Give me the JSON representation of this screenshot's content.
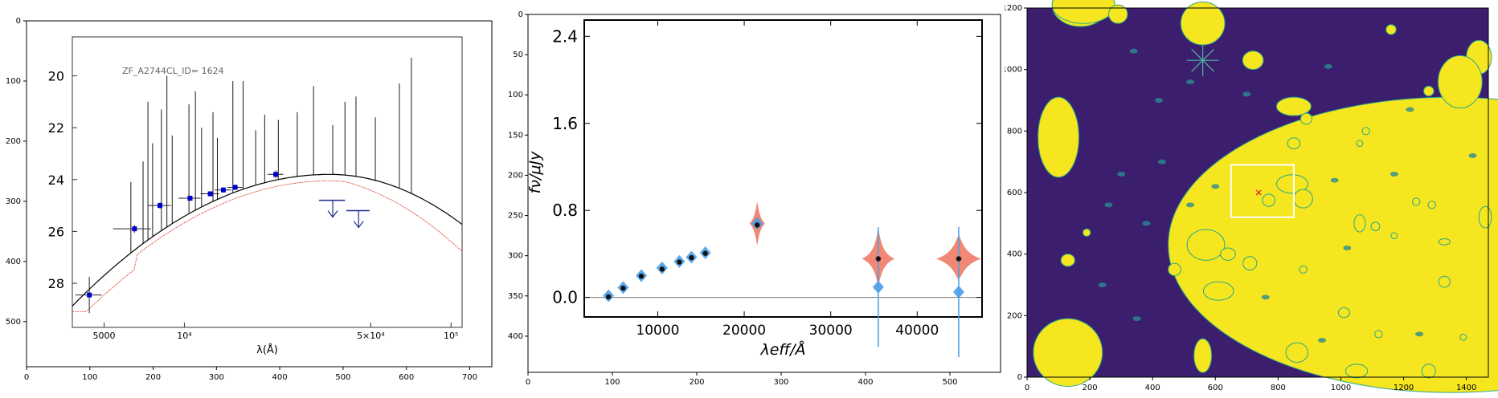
{
  "chart_data": [
    {
      "type": "scatter",
      "title": "",
      "xlabel": "",
      "ylabel": "",
      "xlim": [
        0,
        735
      ],
      "ylim": [
        575,
        0
      ],
      "x_ticks": [
        0,
        100,
        200,
        300,
        400,
        500,
        600,
        700
      ],
      "y_ticks": [
        0,
        100,
        200,
        300,
        400,
        500
      ],
      "embedded_image": {
        "label": "ZF_A2744CL_ID= 1624",
        "xlabel": "λ(Å)",
        "y_tick_labels": [
          "20",
          "22",
          "24",
          "26",
          "28"
        ],
        "y_tick_values": [
          20,
          22,
          24,
          26,
          28
        ],
        "x_tick_labels": [
          "5000",
          "10⁴",
          "5×10⁴",
          "10⁵"
        ],
        "x_tick_values": [
          5000,
          10000,
          50000,
          100000
        ],
        "ylim": [
          18.5,
          29.7
        ],
        "xlim": [
          3800,
          110000
        ],
        "photometry": [
          {
            "x": 4400,
            "y": 28.45,
            "xerr": [
              3900,
              4900
            ],
            "yerr": 0.7
          },
          {
            "x": 6500,
            "y": 25.9,
            "xerr": [
              5400,
              7500
            ],
            "yerr": 0.15
          },
          {
            "x": 8100,
            "y": 25.0,
            "xerr": [
              7300,
              8900
            ],
            "yerr": 0.12
          },
          {
            "x": 10500,
            "y": 24.72,
            "xerr": [
              9500,
              11500
            ],
            "yerr": 0.1
          },
          {
            "x": 12500,
            "y": 24.55,
            "xerr": [
              11500,
              13500
            ],
            "yerr": 0.1
          },
          {
            "x": 14000,
            "y": 24.4,
            "xerr": [
              13000,
              15000
            ],
            "yerr": 0.1
          },
          {
            "x": 15500,
            "y": 24.3,
            "xerr": [
              14500,
              16500
            ],
            "yerr": 0.1
          },
          {
            "x": 22000,
            "y": 23.8,
            "xerr": [
              20500,
              23500
            ],
            "yerr": 0.15
          }
        ],
        "upper_limits": [
          {
            "x": 36000,
            "y": 24.8,
            "xerr": [
              32000,
              40000
            ]
          },
          {
            "x": 45000,
            "y": 25.2,
            "xerr": [
              40500,
              49500
            ]
          }
        ],
        "colors": {
          "points": "#0000cc",
          "model_black": "#000000",
          "model_red": "#e03020"
        }
      }
    },
    {
      "type": "scatter",
      "title": "",
      "xlabel": "λeff/Å",
      "ylabel": "fν/μJy",
      "xlim": [
        1500,
        47500
      ],
      "ylim": [
        -0.18,
        2.55
      ],
      "x_ticks": [
        10000,
        20000,
        30000,
        40000
      ],
      "y_ticks": [
        0.0,
        0.8,
        1.6,
        2.4
      ],
      "x_tick_labels": [
        "10000",
        "20000",
        "30000",
        "40000"
      ],
      "y_tick_labels": [
        "0.0",
        "0.8",
        "1.6",
        "2.4"
      ],
      "outer_pixel_ticks_x": [
        "0",
        "100",
        "200",
        "300",
        "400",
        "500"
      ],
      "outer_pixel_ticks_y": [
        "0",
        "50",
        "100",
        "150",
        "200",
        "250",
        "300",
        "350",
        "400"
      ],
      "outer_xlim": [
        0,
        560
      ],
      "outer_ylim": [
        445,
        0
      ],
      "series": [
        {
          "marker": "diamond",
          "color": "#4a9de8",
          "points": [
            {
              "x": 4300,
              "y": 0.015
            },
            {
              "x": 6000,
              "y": 0.09
            },
            {
              "x": 8100,
              "y": 0.2
            },
            {
              "x": 10500,
              "y": 0.27
            },
            {
              "x": 12500,
              "y": 0.33
            },
            {
              "x": 13900,
              "y": 0.37
            },
            {
              "x": 15500,
              "y": 0.41
            },
            {
              "x": 21500,
              "y": 0.68
            },
            {
              "x": 35500,
              "y": 0.095,
              "yerr": 0.55
            },
            {
              "x": 44800,
              "y": 0.05,
              "yerr": 0.6
            }
          ]
        },
        {
          "marker": "circle",
          "color": "#111111",
          "points": [
            {
              "x": 4300,
              "y": 0.005
            },
            {
              "x": 6000,
              "y": 0.085
            },
            {
              "x": 8100,
              "y": 0.195
            },
            {
              "x": 10500,
              "y": 0.26
            },
            {
              "x": 12500,
              "y": 0.325
            },
            {
              "x": 13900,
              "y": 0.365
            },
            {
              "x": 15500,
              "y": 0.405
            },
            {
              "x": 21500,
              "y": 0.665
            },
            {
              "x": 35500,
              "y": 0.355
            },
            {
              "x": 44800,
              "y": 0.355
            }
          ]
        }
      ],
      "posteriors": [
        {
          "x": 21500,
          "center": 0.68,
          "range": [
            0.48,
            0.88
          ],
          "width": 900
        },
        {
          "x": 35500,
          "center": 0.355,
          "range": [
            0.1,
            0.64
          ],
          "width": 1900
        },
        {
          "x": 44800,
          "center": 0.355,
          "range": [
            0.16,
            0.58
          ],
          "width": 2600
        }
      ],
      "posterior_color": "#f07a66"
    },
    {
      "type": "heatmap",
      "title": "",
      "xlabel": "",
      "ylabel": "",
      "xlim": [
        0,
        1470
      ],
      "ylim": [
        0,
        1200
      ],
      "x_ticks": [
        0,
        200,
        400,
        600,
        800,
        1000,
        1200,
        1400
      ],
      "y_ticks": [
        0,
        200,
        400,
        600,
        800,
        1000,
        1200
      ],
      "background_color": "#3b1f6e",
      "source_color": "#f5e61f",
      "highlight_box": {
        "x0": 650,
        "x1": 850,
        "y0": 520,
        "y1": 690
      },
      "target_marker": {
        "x": 738,
        "y": 600,
        "color": "#e83030"
      }
    }
  ]
}
